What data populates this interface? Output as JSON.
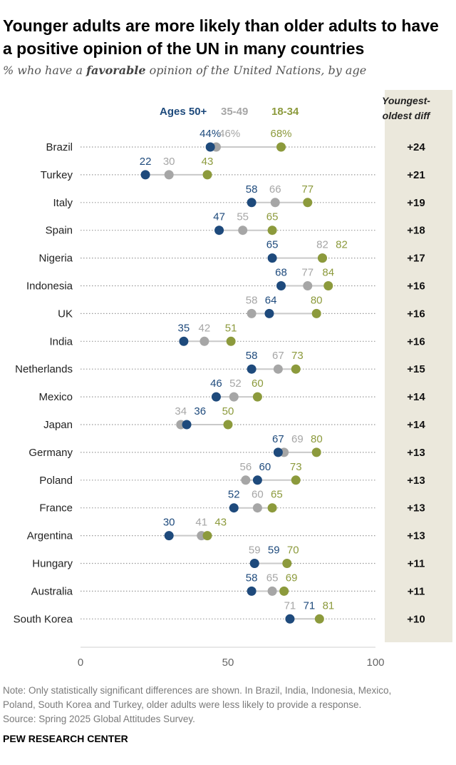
{
  "title": "Younger adults are more likely than older adults to have a positive opinion of the UN in many countries",
  "subtitle": {
    "before": "% who have a ",
    "emphasis": "favorable",
    "after": " opinion of the United Nations, by age"
  },
  "diff_header": [
    "Youngest-",
    "oldest diff"
  ],
  "notes": [
    "Note: Only statistically significant differences are shown. In Brazil, India, Indonesia, Mexico,",
    "Poland, South Korea and Turkey, older adults were less likely to provide a response.",
    "Source: Spring 2025 Global Attitudes Survey."
  ],
  "credit": "PEW RESEARCH CENTER",
  "colors": {
    "old": "#1e4a7c",
    "mid": "#a6a6a6",
    "young": "#8c9a3c",
    "diff_bg": "#ebe8dc"
  },
  "chart_data": {
    "type": "dot",
    "title": "Younger adults are more likely than older adults to have a positive opinion of the UN in many countries",
    "xlim": [
      0,
      100
    ],
    "xticks": [
      0,
      50,
      100
    ],
    "legend": [
      "Ages 50+",
      "35-49",
      "18-34"
    ],
    "series": [
      {
        "name": "Ages 50+",
        "key": "old"
      },
      {
        "name": "35-49",
        "key": "mid"
      },
      {
        "name": "18-34",
        "key": "young"
      }
    ],
    "rows": [
      {
        "country": "Brazil",
        "old": 44,
        "mid": 46,
        "young": 68,
        "diff": "+24",
        "pct": true
      },
      {
        "country": "Turkey",
        "old": 22,
        "mid": 30,
        "young": 43,
        "diff": "+21"
      },
      {
        "country": "Italy",
        "old": 58,
        "mid": 66,
        "young": 77,
        "diff": "+19"
      },
      {
        "country": "Spain",
        "old": 47,
        "mid": 55,
        "young": 65,
        "diff": "+18"
      },
      {
        "country": "Nigeria",
        "old": 65,
        "mid": 82,
        "young": 82,
        "diff": "+17"
      },
      {
        "country": "Indonesia",
        "old": 68,
        "mid": 77,
        "young": 84,
        "diff": "+16"
      },
      {
        "country": "UK",
        "old": 64,
        "mid": 58,
        "young": 80,
        "diff": "+16"
      },
      {
        "country": "India",
        "old": 35,
        "mid": 42,
        "young": 51,
        "diff": "+16"
      },
      {
        "country": "Netherlands",
        "old": 58,
        "mid": 67,
        "young": 73,
        "diff": "+15"
      },
      {
        "country": "Mexico",
        "old": 46,
        "mid": 52,
        "young": 60,
        "diff": "+14"
      },
      {
        "country": "Japan",
        "old": 36,
        "mid": 34,
        "young": 50,
        "diff": "+14"
      },
      {
        "country": "Germany",
        "old": 67,
        "mid": 69,
        "young": 80,
        "diff": "+13"
      },
      {
        "country": "Poland",
        "old": 60,
        "mid": 56,
        "young": 73,
        "diff": "+13"
      },
      {
        "country": "France",
        "old": 52,
        "mid": 60,
        "young": 65,
        "diff": "+13"
      },
      {
        "country": "Argentina",
        "old": 30,
        "mid": 41,
        "young": 43,
        "diff": "+13"
      },
      {
        "country": "Hungary",
        "old": 59,
        "mid": 59,
        "young": 70,
        "diff": "+11"
      },
      {
        "country": "Australia",
        "old": 58,
        "mid": 65,
        "young": 69,
        "diff": "+11"
      },
      {
        "country": "South Korea",
        "old": 71,
        "mid": 71,
        "young": 81,
        "diff": "+10"
      }
    ]
  }
}
